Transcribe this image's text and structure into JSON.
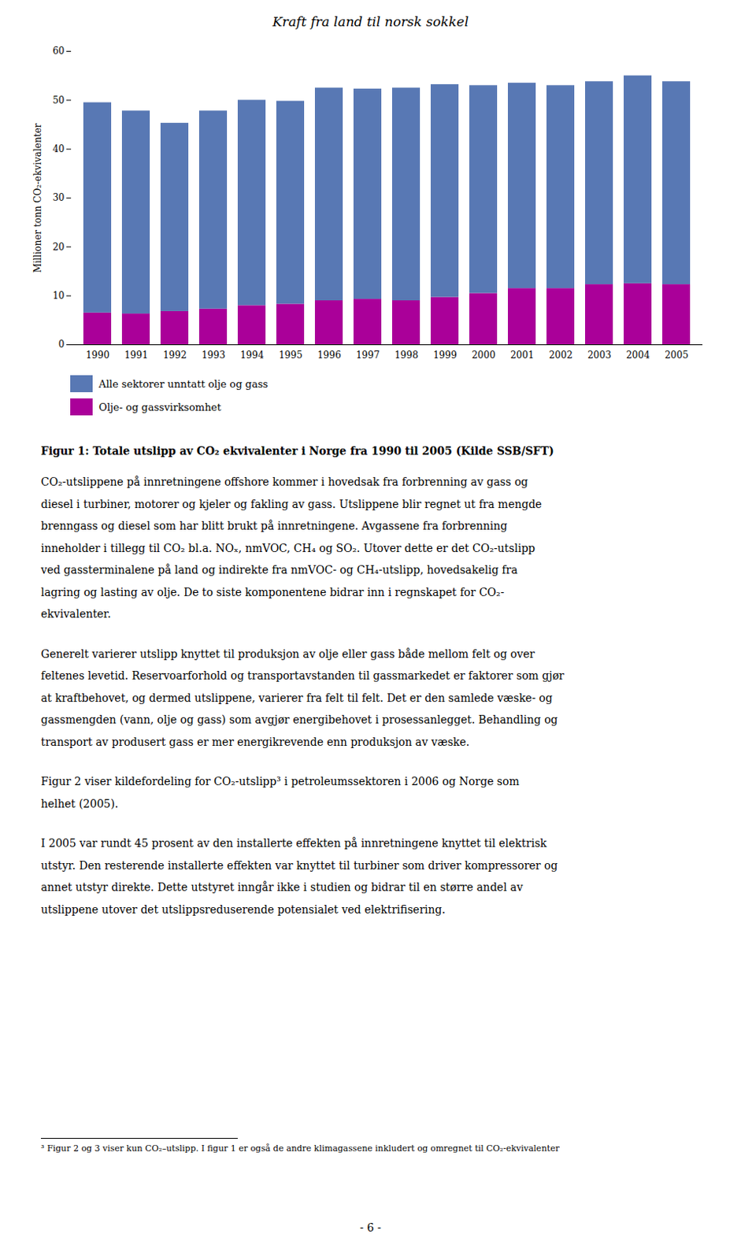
{
  "chart_data": {
    "type": "bar",
    "title": "Kraft fra land til norsk sokkel",
    "categories": [
      "1990",
      "1991",
      "1992",
      "1993",
      "1994",
      "1995",
      "1996",
      "1997",
      "1998",
      "1999",
      "2000",
      "2001",
      "2002",
      "2003",
      "2004",
      "2005"
    ],
    "series": [
      {
        "name": "Olje- og gassvirksomhet",
        "color": "#aa0099",
        "values": [
          6.5,
          6.3,
          6.8,
          7.3,
          8.0,
          8.3,
          9.0,
          9.3,
          9.0,
          9.7,
          10.5,
          11.5,
          11.5,
          12.3,
          12.5,
          12.3
        ]
      },
      {
        "name": "Alle sektorer unntatt olje og gass",
        "color": "#5878b4",
        "values": [
          43.0,
          41.5,
          38.5,
          40.5,
          42.0,
          41.5,
          43.5,
          43.0,
          43.5,
          43.5,
          42.5,
          42.0,
          41.5,
          41.5,
          42.5,
          41.5
        ]
      }
    ],
    "stacked": true,
    "ylabel": "Millioner tonn CO₂-ekvivalenter",
    "ylim": [
      0,
      60
    ],
    "yticks": [
      0,
      10,
      20,
      30,
      40,
      50,
      60
    ],
    "grid": false,
    "legend": "bottom",
    "caption": "Figur 1: Totale utslipp av CO₂ ekvivalenter i Norge fra 1990 til 2005 (Kilde SSB/SFT)",
    "paragraphs": [
      [
        "CO₂-utslippene på innretningene offshore kommer i hovedsak fra forbrenning av gass og",
        "diesel i turbiner, motorer og kjeler og fakling av gass. Utslippene blir regnet ut fra mengde",
        "brenngass og diesel som har blitt brukt på innretningene. Avgassene fra forbrenning",
        "inneholder i tillegg til CO₂ bl.a. NOₓ, nmVOC, CH₄ og SO₂. Utover dette er det CO₂-utslipp",
        "ved gassterminalene på land og indirekte fra nmVOC- og CH₄-utslipp, hovedsakelig fra",
        "lagring og lasting av olje. De to siste komponentene bidrar inn i regnskapet for CO₂-",
        "ekvivalenter."
      ],
      [
        "Generelt varierer utslipp knyttet til produksjon av olje eller gass både mellom felt og over",
        "feltenes levetid. Reservoarforhold og transportavstanden til gassmarkedet er faktorer som gjør",
        "at kraftbehovet, og dermed utslippene, varierer fra felt til felt. Det er den samlede væske- og",
        "gassmengden (vann, olje og gass) som avgjør energibehovet i prosessanlegget. Behandling og",
        "transport av produsert gass er mer energikrevende enn produksjon av væske."
      ],
      [
        "Figur 2 viser kildefordeling for CO₂-utslipp³ i petroleumssektoren i 2006 og Norge som",
        "helhet (2005)."
      ],
      [
        "I 2005 var rundt 45 prosent av den installerte effekten på innretningene knyttet til elektrisk",
        "utstyr. Den resterende installerte effekten var knyttet til turbiner som driver kompressorer og",
        "annet utstyr direkte. Dette utstyret inngår ikke i studien og bidrar til en større andel av",
        "utslippene utover det utslippsreduserende potensialet ved elektrifisering."
      ]
    ],
    "footnote": "³ Figur 2 og 3 viser kun CO₂–utslipp. I figur 1 er også de andre klimagassene inkludert og omregnet til CO₂-ekvivalenter",
    "page_number": "- 6 -"
  }
}
